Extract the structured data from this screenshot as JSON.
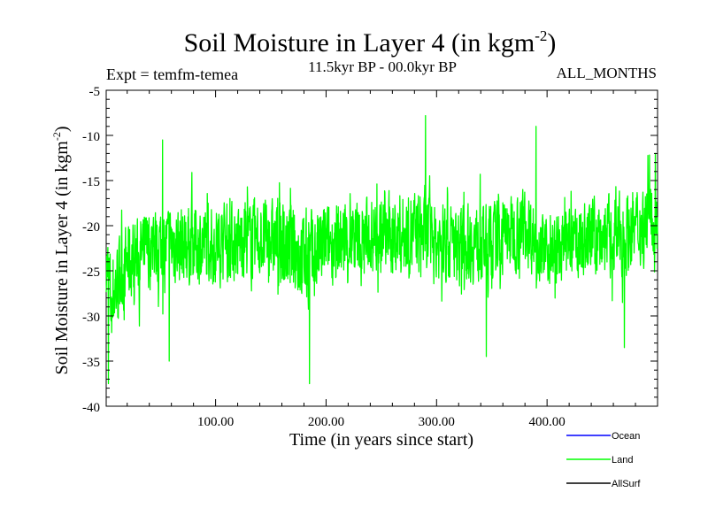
{
  "chart_data": {
    "type": "line",
    "title": "Soil Moisture in Layer 4 (in kgm",
    "title_exponent": "-2",
    "title_close": ")",
    "experiment": "Expt = temfm-temea",
    "period": "11.5kyr BP - 00.0kyr BP",
    "months": "ALL_MONTHS",
    "xlabel": "Time (in years since start)",
    "ylabel": "Soil Moisture in Layer 4 (in kgm",
    "ylabel_exponent": "-2",
    "ylabel_close": ")",
    "xlim": [
      1,
      500
    ],
    "ylim": [
      -40,
      -5
    ],
    "x_ticks": [
      100,
      200,
      300,
      400
    ],
    "x_tick_labels": [
      "100.00",
      "200.00",
      "300.00",
      "400.00"
    ],
    "y_ticks": [
      -40,
      -35,
      -30,
      -25,
      -20,
      -15,
      -10,
      -5
    ],
    "y_tick_labels": [
      "-40",
      "-35",
      "-30",
      "-25",
      "-20",
      "-15",
      "-10",
      "-5"
    ],
    "legend_position": "bottom-right",
    "series": [
      {
        "name": "Ocean",
        "color": "#0000ff",
        "values": []
      },
      {
        "name": "Land",
        "color": "#00ff00",
        "noise_seed": 7,
        "envelope": {
          "x": [
            1,
            5,
            20,
            50,
            100,
            150,
            185,
            200,
            250,
            290,
            300,
            350,
            380,
            400,
            450,
            470,
            500
          ],
          "mean": [
            -24,
            -28,
            -24,
            -22,
            -22,
            -21.5,
            -24,
            -22,
            -21,
            -21,
            -22,
            -22,
            -20,
            -23,
            -21,
            -21,
            -19
          ],
          "amplitude": [
            6,
            9,
            7,
            7,
            7,
            7,
            9,
            7,
            7,
            8,
            7,
            7,
            7,
            6,
            7,
            7,
            7
          ]
        },
        "annotated_points": [
          {
            "x": 3,
            "y": -37.5
          },
          {
            "x": 52,
            "y": -10.5
          },
          {
            "x": 58,
            "y": -35
          },
          {
            "x": 185,
            "y": -37.5
          },
          {
            "x": 290,
            "y": -7.8
          },
          {
            "x": 345,
            "y": -34.5
          },
          {
            "x": 390,
            "y": -9
          },
          {
            "x": 470,
            "y": -33.5
          },
          {
            "x": 498,
            "y": -12
          }
        ]
      },
      {
        "name": "AllSurf",
        "color": "#000000",
        "values": []
      }
    ]
  }
}
